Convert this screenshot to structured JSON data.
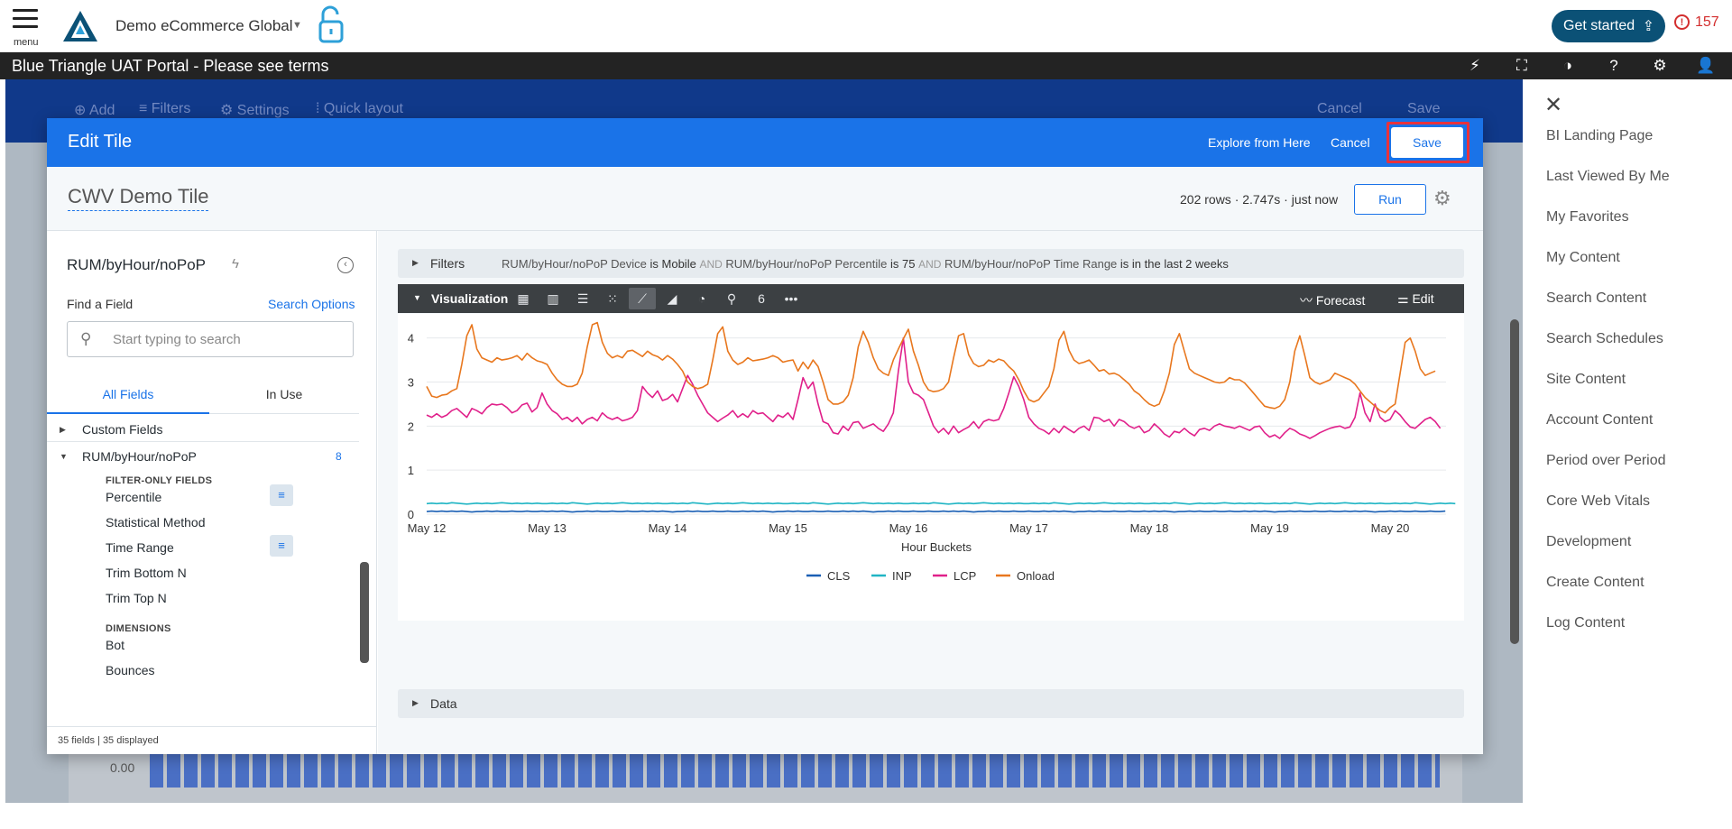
{
  "topbar": {
    "menu_label": "menu",
    "brand": "Demo eCommerce Global",
    "get_started": "Get started",
    "alert_count": "157"
  },
  "portal": {
    "title": "Blue Triangle UAT Portal - Please see terms"
  },
  "dashboard": {
    "toolbar": [
      "Add",
      "Filters",
      "Settings",
      "Quick layout"
    ],
    "cancel": "Cancel",
    "save": "Save",
    "axis_zero": "0.00"
  },
  "right_menu": {
    "items": [
      "BI Landing Page",
      "Last Viewed By Me",
      "My Favorites",
      "My Content",
      "Search Content",
      "Search Schedules",
      "Site Content",
      "Account Content",
      "Period over Period",
      "Core Web Vitals",
      "Development",
      "Create Content",
      "Log Content"
    ]
  },
  "modal": {
    "title": "Edit Tile",
    "explore": "Explore from Here",
    "cancel": "Cancel",
    "save": "Save",
    "tile_name": "CWV Demo Tile",
    "meta": "202 rows · 2.747s · just now",
    "run": "Run"
  },
  "field_picker": {
    "view_name": "RUM/byHour/noPoP",
    "find_label": "Find a Field",
    "search_options": "Search Options",
    "search_placeholder": "Start typing to search",
    "tabs": [
      "All Fields",
      "In Use"
    ],
    "custom_fields": "Custom Fields",
    "group": "RUM/byHour/noPoP",
    "group_count": "8",
    "filter_only_header": "FILTER-ONLY FIELDS",
    "filter_only": [
      "Percentile",
      "Statistical Method",
      "Time Range",
      "Trim Bottom N",
      "Trim Top N"
    ],
    "dimensions_header": "DIMENSIONS",
    "dimensions": [
      "Bot",
      "Bounces"
    ],
    "footer": "35 fields | 35 displayed"
  },
  "filters": {
    "label": "Filters",
    "clauses": [
      {
        "field": "RUM/byHour/noPoP Device",
        "cond": "is Mobile"
      },
      {
        "field": "RUM/byHour/noPoP Percentile",
        "cond": "is 75"
      },
      {
        "field": "RUM/byHour/noPoP Time Range",
        "cond": "is in the last 2 weeks"
      }
    ],
    "joiner": "AND"
  },
  "visualization": {
    "label": "Visualization",
    "icons": [
      "table-icon",
      "column-chart-icon",
      "bar-chart-icon",
      "scatter-icon",
      "line-chart-icon",
      "area-chart-icon",
      "pie-chart-icon",
      "map-pin-icon",
      "single-value-icon",
      "more-icon"
    ],
    "forecast": "Forecast",
    "edit": "Edit"
  },
  "data_section": {
    "label": "Data"
  },
  "chart_data": {
    "type": "line",
    "xlabel": "Hour Buckets",
    "x_ticks": [
      "May 12",
      "May 13",
      "May 14",
      "May 15",
      "May 16",
      "May 17",
      "May 18",
      "May 19",
      "May 20"
    ],
    "y_ticks": [
      "0",
      "1",
      "2",
      "3",
      "4"
    ],
    "ylim": [
      0,
      4.3
    ],
    "points_per_day": 24,
    "series": [
      {
        "name": "CLS",
        "color": "#1a5fb4",
        "values": [
          0.06,
          0.07,
          0.06,
          0.07,
          0.06,
          0.07,
          0.06,
          0.07,
          0.06,
          0.05,
          0.06,
          0.06,
          0.07,
          0.06,
          0.07,
          0.06,
          0.06,
          0.07,
          0.06,
          0.06,
          0.07,
          0.06,
          0.06,
          0.07,
          0.06,
          0.07,
          0.06,
          0.07,
          0.06,
          0.05,
          0.06,
          0.06,
          0.07,
          0.06,
          0.07,
          0.06,
          0.06,
          0.07,
          0.06,
          0.06,
          0.07,
          0.06,
          0.06,
          0.07,
          0.06,
          0.07,
          0.06,
          0.07,
          0.06,
          0.05,
          0.06,
          0.06,
          0.07,
          0.06,
          0.07,
          0.06,
          0.06,
          0.07,
          0.06,
          0.06,
          0.07,
          0.06,
          0.06,
          0.07,
          0.06,
          0.07,
          0.06,
          0.07,
          0.06,
          0.05,
          0.06,
          0.06,
          0.07,
          0.06,
          0.07,
          0.06,
          0.06,
          0.07,
          0.06,
          0.06,
          0.07,
          0.06,
          0.06,
          0.07,
          0.06,
          0.07,
          0.06,
          0.07,
          0.06,
          0.05,
          0.06,
          0.06,
          0.07,
          0.06,
          0.07,
          0.06,
          0.06,
          0.07,
          0.06,
          0.06,
          0.07,
          0.06,
          0.06,
          0.07,
          0.06,
          0.07,
          0.06,
          0.07,
          0.06,
          0.05,
          0.06,
          0.06,
          0.07,
          0.06,
          0.07,
          0.06,
          0.06,
          0.07,
          0.06,
          0.06,
          0.07,
          0.06,
          0.06,
          0.07,
          0.06,
          0.07,
          0.06,
          0.07,
          0.06,
          0.05,
          0.06,
          0.06,
          0.07,
          0.06,
          0.07,
          0.06,
          0.06,
          0.07,
          0.06,
          0.06,
          0.07,
          0.06,
          0.06,
          0.07,
          0.06,
          0.07,
          0.06,
          0.07,
          0.06,
          0.05,
          0.06,
          0.06,
          0.07,
          0.06,
          0.07,
          0.06,
          0.06,
          0.07,
          0.06,
          0.06,
          0.07,
          0.06,
          0.06,
          0.07,
          0.06,
          0.07,
          0.06,
          0.07,
          0.06,
          0.05,
          0.06,
          0.06,
          0.07,
          0.06,
          0.07,
          0.06,
          0.06,
          0.07,
          0.06,
          0.06,
          0.07,
          0.06,
          0.06,
          0.07,
          0.06,
          0.07,
          0.06,
          0.07,
          0.06,
          0.05,
          0.06,
          0.06,
          0.07,
          0.06,
          0.07,
          0.06,
          0.06,
          0.07,
          0.06,
          0.06,
          0.07,
          0.06,
          0.06,
          0.07
        ]
      },
      {
        "name": "INP",
        "color": "#20b5c4",
        "values": [
          0.24,
          0.25,
          0.24,
          0.25,
          0.24,
          0.26,
          0.25,
          0.24,
          0.23,
          0.24,
          0.25,
          0.24,
          0.25,
          0.24,
          0.25,
          0.26,
          0.25,
          0.24,
          0.25,
          0.24,
          0.25,
          0.24,
          0.25,
          0.24,
          0.24,
          0.25,
          0.24,
          0.25,
          0.24,
          0.26,
          0.25,
          0.24,
          0.23,
          0.24,
          0.25,
          0.24,
          0.25,
          0.24,
          0.25,
          0.26,
          0.25,
          0.24,
          0.25,
          0.24,
          0.25,
          0.24,
          0.25,
          0.24,
          0.24,
          0.25,
          0.24,
          0.25,
          0.24,
          0.26,
          0.25,
          0.24,
          0.23,
          0.24,
          0.25,
          0.24,
          0.25,
          0.24,
          0.25,
          0.26,
          0.25,
          0.24,
          0.25,
          0.24,
          0.25,
          0.24,
          0.25,
          0.24,
          0.24,
          0.25,
          0.24,
          0.25,
          0.24,
          0.26,
          0.25,
          0.24,
          0.23,
          0.24,
          0.25,
          0.24,
          0.25,
          0.24,
          0.25,
          0.26,
          0.25,
          0.24,
          0.25,
          0.24,
          0.25,
          0.24,
          0.25,
          0.24,
          0.24,
          0.25,
          0.24,
          0.25,
          0.24,
          0.26,
          0.25,
          0.24,
          0.23,
          0.24,
          0.25,
          0.24,
          0.25,
          0.24,
          0.25,
          0.26,
          0.25,
          0.24,
          0.25,
          0.24,
          0.25,
          0.24,
          0.25,
          0.24,
          0.24,
          0.25,
          0.24,
          0.25,
          0.24,
          0.26,
          0.25,
          0.24,
          0.23,
          0.24,
          0.25,
          0.24,
          0.25,
          0.24,
          0.25,
          0.26,
          0.25,
          0.24,
          0.25,
          0.24,
          0.25,
          0.24,
          0.25,
          0.24,
          0.24,
          0.25,
          0.24,
          0.25,
          0.24,
          0.26,
          0.25,
          0.24,
          0.23,
          0.24,
          0.25,
          0.24,
          0.25,
          0.24,
          0.25,
          0.26,
          0.25,
          0.24,
          0.25,
          0.24,
          0.25,
          0.24,
          0.25,
          0.24,
          0.24,
          0.25,
          0.24,
          0.25,
          0.24,
          0.26,
          0.25,
          0.24,
          0.23,
          0.24,
          0.25,
          0.24,
          0.25,
          0.24,
          0.25,
          0.26,
          0.25,
          0.24,
          0.25,
          0.24,
          0.25,
          0.24,
          0.25,
          0.24,
          0.24,
          0.25,
          0.24,
          0.25,
          0.24,
          0.26,
          0.25,
          0.24,
          0.23,
          0.24,
          0.25,
          0.24,
          0.25,
          0.24
        ]
      },
      {
        "name": "LCP",
        "color": "#e0208a",
        "values": [
          2.25,
          2.2,
          2.28,
          2.2,
          2.25,
          2.35,
          2.4,
          2.3,
          2.2,
          2.4,
          2.35,
          2.28,
          2.42,
          2.5,
          2.48,
          2.5,
          2.42,
          2.3,
          2.35,
          2.48,
          2.52,
          2.32,
          2.42,
          2.75,
          2.5,
          2.35,
          2.28,
          2.15,
          2.2,
          2.1,
          2.2,
          2.05,
          2.15,
          2.2,
          2.12,
          2.3,
          2.2,
          2.15,
          2.2,
          2.12,
          2.15,
          2.2,
          2.35,
          2.9,
          2.75,
          2.65,
          2.8,
          2.58,
          2.62,
          2.72,
          2.55,
          2.85,
          3.15,
          2.95,
          2.7,
          2.5,
          2.3,
          2.2,
          2.1,
          2.18,
          2.25,
          2.35,
          2.2,
          2.28,
          2.2,
          2.35,
          2.28,
          2.3,
          2.2,
          2.1,
          2.25,
          2.2,
          2.3,
          2.15,
          2.6,
          3.1,
          2.85,
          3.0,
          2.5,
          2.1,
          2.05,
          1.85,
          1.82,
          2.0,
          1.9,
          2.08,
          2.1,
          1.95,
          2.0,
          2.05,
          1.95,
          1.88,
          2.05,
          2.3,
          3.25,
          4.0,
          3.0,
          2.75,
          2.7,
          2.6,
          2.3,
          2.0,
          1.85,
          1.95,
          1.82,
          2.0,
          1.85,
          1.92,
          1.98,
          2.1,
          1.95,
          2.1,
          2.15,
          2.12,
          2.15,
          2.4,
          2.75,
          3.12,
          2.9,
          2.6,
          2.2,
          2.05,
          1.95,
          1.9,
          1.82,
          1.95,
          1.85,
          2.0,
          1.92,
          1.85,
          1.95,
          2.0,
          1.9,
          2.2,
          2.18,
          2.1,
          2.15,
          2.0,
          2.15,
          2.1,
          2.0,
          1.95,
          2.0,
          1.85,
          1.9,
          2.05,
          1.95,
          1.82,
          1.75,
          1.88,
          1.85,
          1.95,
          1.85,
          1.78,
          1.92,
          1.95,
          1.9,
          2.0,
          2.05,
          2.0,
          1.98,
          1.95,
          2.0,
          1.95,
          1.9,
          1.98,
          2.0,
          1.85,
          1.75,
          1.8,
          1.72,
          1.85,
          1.95,
          1.9,
          1.82,
          1.78,
          1.72,
          1.78,
          1.85,
          1.9,
          1.95,
          1.98,
          2.0,
          1.95,
          1.98,
          2.2,
          2.75,
          2.3,
          2.1,
          2.5,
          2.2,
          2.1,
          2.15,
          2.35,
          2.25,
          2.1,
          1.98,
          1.95,
          2.05,
          2.15,
          2.2,
          2.1,
          1.95
        ]
      },
      {
        "name": "Onload",
        "color": "#e8771e",
        "values": [
          2.9,
          2.68,
          2.65,
          2.7,
          2.72,
          2.8,
          2.85,
          3.4,
          4.05,
          4.3,
          3.75,
          3.55,
          3.5,
          3.45,
          3.55,
          3.5,
          3.52,
          3.55,
          3.6,
          3.5,
          3.65,
          3.55,
          3.48,
          3.45,
          3.4,
          3.2,
          3.05,
          2.95,
          2.9,
          2.9,
          2.95,
          3.2,
          3.8,
          4.3,
          4.35,
          3.9,
          3.65,
          3.55,
          3.6,
          3.55,
          3.7,
          3.72,
          3.65,
          3.58,
          3.7,
          3.62,
          3.58,
          3.5,
          3.6,
          3.52,
          3.4,
          3.25,
          3.0,
          2.9,
          2.85,
          2.88,
          2.95,
          3.5,
          4.1,
          4.25,
          3.7,
          3.5,
          3.4,
          3.45,
          3.55,
          3.48,
          3.5,
          3.52,
          3.55,
          3.6,
          3.55,
          3.45,
          3.48,
          3.5,
          3.25,
          3.45,
          3.3,
          3.5,
          3.35,
          3.0,
          2.6,
          2.5,
          2.5,
          2.55,
          2.7,
          3.1,
          3.8,
          4.15,
          3.9,
          3.55,
          3.3,
          3.2,
          3.15,
          3.5,
          3.75,
          3.98,
          4.2,
          3.7,
          3.38,
          3.0,
          2.82,
          2.78,
          2.8,
          2.85,
          3.0,
          3.55,
          4.05,
          4.1,
          3.62,
          3.42,
          3.35,
          3.38,
          3.5,
          3.45,
          3.52,
          3.48,
          3.35,
          3.25,
          3.05,
          2.8,
          2.6,
          2.55,
          2.6,
          2.75,
          2.9,
          3.3,
          3.95,
          4.15,
          3.72,
          3.5,
          3.42,
          3.45,
          3.5,
          3.38,
          3.25,
          3.28,
          3.18,
          3.2,
          3.15,
          3.05,
          2.95,
          2.8,
          2.72,
          2.6,
          2.5,
          2.45,
          2.5,
          2.8,
          3.2,
          3.85,
          4.1,
          3.7,
          3.3,
          3.2,
          3.15,
          3.1,
          3.05,
          3.0,
          2.98,
          3.0,
          3.1,
          3.05,
          3.05,
          2.98,
          2.85,
          2.72,
          2.58,
          2.45,
          2.42,
          2.4,
          2.45,
          2.6,
          3.0,
          3.7,
          4.05,
          3.6,
          3.1,
          3.0,
          2.95,
          3.0,
          3.05,
          3.2,
          3.15,
          3.1,
          3.05,
          2.95,
          2.8,
          2.65,
          2.55,
          2.45,
          2.35,
          2.3,
          2.42,
          2.5,
          3.2,
          3.9,
          4.0,
          3.7,
          3.3,
          3.15,
          3.2,
          3.25
        ]
      }
    ]
  }
}
